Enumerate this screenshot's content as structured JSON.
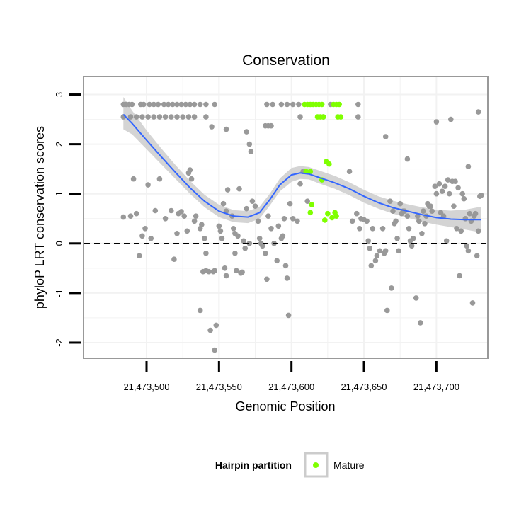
{
  "chart_data": {
    "type": "scatter",
    "title": "Conservation",
    "xlabel": "Genomic Position",
    "ylabel": "phyloP LRT conservation scores",
    "xlim": [
      21473457,
      21473735
    ],
    "ylim": [
      -2.3,
      3.35
    ],
    "x_ticks": [
      21473500,
      21473550,
      21473600,
      21473650,
      21473700
    ],
    "x_tick_labels": [
      "21,473,500",
      "21,473,550",
      "21,473,600",
      "21,473,650",
      "21,473,700"
    ],
    "y_ticks": [
      -2,
      -1,
      0,
      1,
      2,
      3
    ],
    "y_tick_labels": [
      "-2",
      "-1",
      "0",
      "1",
      "2",
      "3"
    ],
    "grid": true,
    "reference_line": {
      "y": 0,
      "style": "dashed"
    },
    "colors": {
      "background_points": "#999999",
      "mature": "#7FFF00",
      "smooth": "#3366FF",
      "ribbon": "#CCCCCC",
      "panel_border": "#999999",
      "grid": "#F2F2F2"
    },
    "legend": {
      "title": "Hairpin partition",
      "position": "bottom",
      "entries": [
        "Mature"
      ]
    },
    "series": [
      {
        "name": "",
        "color": "#999999",
        "points": [
          [
            21473484,
            2.8
          ],
          [
            21473486,
            2.8
          ],
          [
            21473488,
            2.8
          ],
          [
            21473490,
            2.8
          ],
          [
            21473484,
            2.55
          ],
          [
            21473489,
            2.55
          ],
          [
            21473493,
            2.55
          ],
          [
            21473497,
            2.55
          ],
          [
            21473501,
            2.55
          ],
          [
            21473505,
            2.55
          ],
          [
            21473509,
            2.55
          ],
          [
            21473513,
            2.55
          ],
          [
            21473517,
            2.55
          ],
          [
            21473521,
            2.55
          ],
          [
            21473525,
            2.55
          ],
          [
            21473529,
            2.55
          ],
          [
            21473533,
            2.55
          ],
          [
            21473541,
            2.55
          ],
          [
            21473496,
            2.8
          ],
          [
            21473498,
            2.8
          ],
          [
            21473502,
            2.8
          ],
          [
            21473505,
            2.8
          ],
          [
            21473508,
            2.8
          ],
          [
            21473512,
            2.8
          ],
          [
            21473515,
            2.8
          ],
          [
            21473518,
            2.8
          ],
          [
            21473521,
            2.8
          ],
          [
            21473524,
            2.8
          ],
          [
            21473527,
            2.8
          ],
          [
            21473530,
            2.8
          ],
          [
            21473533,
            2.8
          ],
          [
            21473537,
            2.8
          ],
          [
            21473541,
            2.8
          ],
          [
            21473547,
            2.8
          ],
          [
            21473583,
            2.8
          ],
          [
            21473587,
            2.8
          ],
          [
            21473593,
            2.8
          ],
          [
            21473597,
            2.8
          ],
          [
            21473601,
            2.8
          ],
          [
            21473605,
            2.8
          ],
          [
            21473627,
            2.8
          ],
          [
            21473646,
            2.8
          ],
          [
            21473622,
            2.55
          ],
          [
            21473646,
            2.55
          ],
          [
            21473606,
            2.55
          ],
          [
            21473545,
            2.35
          ],
          [
            21473555,
            2.3
          ],
          [
            21473569,
            2.25
          ],
          [
            21473571,
            2.0
          ],
          [
            21473572,
            1.85
          ],
          [
            21473582,
            2.37
          ],
          [
            21473584,
            2.37
          ],
          [
            21473586,
            2.37
          ],
          [
            21473665,
            2.15
          ],
          [
            21473680,
            1.7
          ],
          [
            21473700,
            2.45
          ],
          [
            21473710,
            2.5
          ],
          [
            21473729,
            2.65
          ],
          [
            21473722,
            1.55
          ],
          [
            21473484,
            0.53
          ],
          [
            21473489,
            0.55
          ],
          [
            21473491,
            1.3
          ],
          [
            21473493,
            0.6
          ],
          [
            21473495,
            -0.25
          ],
          [
            21473497,
            0.15
          ],
          [
            21473499,
            0.3
          ],
          [
            21473501,
            1.18
          ],
          [
            21473503,
            0.1
          ],
          [
            21473506,
            0.66
          ],
          [
            21473509,
            1.3
          ],
          [
            21473513,
            0.5
          ],
          [
            21473517,
            0.66
          ],
          [
            21473519,
            -0.32
          ],
          [
            21473521,
            0.2
          ],
          [
            21473522,
            0.6
          ],
          [
            21473524,
            0.64
          ],
          [
            21473526,
            0.55
          ],
          [
            21473528,
            0.25
          ],
          [
            21473529,
            1.42
          ],
          [
            21473530,
            1.48
          ],
          [
            21473531,
            1.3
          ],
          [
            21473533,
            0.45
          ],
          [
            21473534,
            0.55
          ],
          [
            21473537,
            0.3
          ],
          [
            21473537,
            -1.35
          ],
          [
            21473538,
            0.38
          ],
          [
            21473539,
            -0.57
          ],
          [
            21473540,
            0.1
          ],
          [
            21473541,
            -0.2
          ],
          [
            21473541,
            -0.55
          ],
          [
            21473543,
            -0.57
          ],
          [
            21473544,
            -1.75
          ],
          [
            21473546,
            -0.57
          ],
          [
            21473547,
            -0.55
          ],
          [
            21473548,
            -1.65
          ],
          [
            21473547,
            -2.15
          ],
          [
            21473550,
            0.35
          ],
          [
            21473551,
            0.25
          ],
          [
            21473552,
            0.1
          ],
          [
            21473553,
            0.8
          ],
          [
            21473554,
            -0.5
          ],
          [
            21473555,
            0.65
          ],
          [
            21473555,
            -0.65
          ],
          [
            21473556,
            1.08
          ],
          [
            21473559,
            0.55
          ],
          [
            21473560,
            0.3
          ],
          [
            21473561,
            0.2
          ],
          [
            21473561,
            -0.2
          ],
          [
            21473562,
            -0.55
          ],
          [
            21473563,
            0.15
          ],
          [
            21473564,
            1.1
          ],
          [
            21473565,
            -0.6
          ],
          [
            21473566,
            -0.58
          ],
          [
            21473567,
            0.05
          ],
          [
            21473568,
            -0.1
          ],
          [
            21473569,
            0.7
          ],
          [
            21473571,
            0.0
          ],
          [
            21473573,
            0.85
          ],
          [
            21473575,
            0.75
          ],
          [
            21473577,
            0.45
          ],
          [
            21473578,
            0.1
          ],
          [
            21473579,
            0.0
          ],
          [
            21473580,
            -0.05
          ],
          [
            21473582,
            -0.2
          ],
          [
            21473583,
            -0.72
          ],
          [
            21473584,
            0.55
          ],
          [
            21473586,
            0.3
          ],
          [
            21473588,
            0.0
          ],
          [
            21473590,
            -0.35
          ],
          [
            21473591,
            0.35
          ],
          [
            21473593,
            0.1
          ],
          [
            21473594,
            0.15
          ],
          [
            21473595,
            0.5
          ],
          [
            21473596,
            -0.45
          ],
          [
            21473597,
            -0.7
          ],
          [
            21473598,
            -1.45
          ],
          [
            21473599,
            0.8
          ],
          [
            21473601,
            0.5
          ],
          [
            21473604,
            0.45
          ],
          [
            21473606,
            1.2
          ],
          [
            21473608,
            1.45
          ],
          [
            21473611,
            0.85
          ],
          [
            21473640,
            1.45
          ],
          [
            21473642,
            0.45
          ],
          [
            21473645,
            0.6
          ],
          [
            21473647,
            0.3
          ],
          [
            21473648,
            0.5
          ],
          [
            21473650,
            0.48
          ],
          [
            21473652,
            0.45
          ],
          [
            21473653,
            0.05
          ],
          [
            21473654,
            -0.1
          ],
          [
            21473655,
            -0.45
          ],
          [
            21473656,
            0.3
          ],
          [
            21473658,
            -0.35
          ],
          [
            21473659,
            -0.25
          ],
          [
            21473661,
            -0.15
          ],
          [
            21473663,
            0.3
          ],
          [
            21473664,
            -0.2
          ],
          [
            21473665,
            -0.15
          ],
          [
            21473666,
            -1.35
          ],
          [
            21473668,
            0.85
          ],
          [
            21473669,
            -0.9
          ],
          [
            21473670,
            0.65
          ],
          [
            21473671,
            0.4
          ],
          [
            21473672,
            0.45
          ],
          [
            21473673,
            0.1
          ],
          [
            21473674,
            -0.15
          ],
          [
            21473675,
            0.8
          ],
          [
            21473676,
            0.6
          ],
          [
            21473677,
            0.65
          ],
          [
            21473678,
            0.65
          ],
          [
            21473680,
            0.55
          ],
          [
            21473681,
            0.3
          ],
          [
            21473682,
            0.05
          ],
          [
            21473683,
            -0.05
          ],
          [
            21473684,
            0.1
          ],
          [
            21473686,
            -1.1
          ],
          [
            21473687,
            0.55
          ],
          [
            21473688,
            0.45
          ],
          [
            21473689,
            -1.6
          ],
          [
            21473690,
            0.2
          ],
          [
            21473691,
            0.65
          ],
          [
            21473692,
            0.4
          ],
          [
            21473693,
            0.55
          ],
          [
            21473694,
            0.8
          ],
          [
            21473695,
            0.75
          ],
          [
            21473696,
            0.75
          ],
          [
            21473697,
            0.65
          ],
          [
            21473699,
            1.15
          ],
          [
            21473700,
            1.0
          ],
          [
            21473702,
            1.2
          ],
          [
            21473703,
            0.62
          ],
          [
            21473704,
            1.05
          ],
          [
            21473705,
            0.55
          ],
          [
            21473706,
            1.15
          ],
          [
            21473707,
            0.05
          ],
          [
            21473708,
            1.28
          ],
          [
            21473709,
            1.0
          ],
          [
            21473711,
            1.25
          ],
          [
            21473712,
            0.75
          ],
          [
            21473713,
            1.25
          ],
          [
            21473714,
            0.3
          ],
          [
            21473715,
            1.12
          ],
          [
            21473716,
            -0.65
          ],
          [
            21473717,
            0.25
          ],
          [
            21473718,
            1.0
          ],
          [
            21473719,
            0.9
          ],
          [
            21473720,
            0.5
          ],
          [
            21473721,
            -0.05
          ],
          [
            21473722,
            -0.15
          ],
          [
            21473723,
            0.6
          ],
          [
            21473724,
            0.45
          ],
          [
            21473725,
            -1.2
          ],
          [
            21473726,
            0.55
          ],
          [
            21473727,
            0.6
          ],
          [
            21473728,
            -0.25
          ],
          [
            21473729,
            0.25
          ],
          [
            21473730,
            0.95
          ],
          [
            21473731,
            0.97
          ]
        ]
      },
      {
        "name": "Mature",
        "color": "#7FFF00",
        "points": [
          [
            21473609,
            2.8
          ],
          [
            21473611,
            2.8
          ],
          [
            21473613,
            2.8
          ],
          [
            21473615,
            2.8
          ],
          [
            21473617,
            2.8
          ],
          [
            21473619,
            2.8
          ],
          [
            21473621,
            2.8
          ],
          [
            21473629,
            2.8
          ],
          [
            21473631,
            2.8
          ],
          [
            21473633,
            2.8
          ],
          [
            21473618,
            2.55
          ],
          [
            21473620,
            2.55
          ],
          [
            21473622,
            2.55
          ],
          [
            21473632,
            2.55
          ],
          [
            21473634,
            2.55
          ],
          [
            21473610,
            1.45
          ],
          [
            21473613,
            1.45
          ],
          [
            21473621,
            1.28
          ],
          [
            21473624,
            1.65
          ],
          [
            21473626,
            1.6
          ],
          [
            21473613,
            0.62
          ],
          [
            21473614,
            0.78
          ],
          [
            21473623,
            0.47
          ],
          [
            21473625,
            0.6
          ],
          [
            21473628,
            0.52
          ],
          [
            21473630,
            0.62
          ],
          [
            21473631,
            0.55
          ]
        ]
      }
    ],
    "smooth": {
      "x": [
        21473484,
        21473490,
        21473500,
        21473510,
        21473520,
        21473530,
        21473540,
        21473550,
        21473560,
        21473570,
        21473578,
        21473585,
        21473592,
        21473600,
        21473606,
        21473612,
        21473620,
        21473630,
        21473640,
        21473650,
        21473660,
        21473670,
        21473680,
        21473690,
        21473700,
        21473710,
        21473720,
        21473731
      ],
      "y": [
        2.6,
        2.42,
        2.08,
        1.75,
        1.43,
        1.12,
        0.85,
        0.65,
        0.55,
        0.53,
        0.62,
        0.88,
        1.18,
        1.38,
        1.42,
        1.4,
        1.32,
        1.22,
        1.1,
        0.95,
        0.82,
        0.72,
        0.65,
        0.58,
        0.52,
        0.49,
        0.48,
        0.48
      ],
      "lower": [
        2.3,
        2.2,
        1.9,
        1.6,
        1.3,
        1.0,
        0.73,
        0.53,
        0.43,
        0.41,
        0.5,
        0.76,
        1.05,
        1.24,
        1.3,
        1.29,
        1.2,
        1.1,
        0.97,
        0.82,
        0.7,
        0.6,
        0.52,
        0.44,
        0.38,
        0.33,
        0.28,
        0.22
      ],
      "upper": [
        2.95,
        2.68,
        2.28,
        1.92,
        1.58,
        1.26,
        0.98,
        0.78,
        0.67,
        0.65,
        0.74,
        1.0,
        1.31,
        1.52,
        1.56,
        1.54,
        1.46,
        1.36,
        1.23,
        1.08,
        0.95,
        0.86,
        0.79,
        0.73,
        0.68,
        0.66,
        0.68,
        0.74
      ]
    }
  }
}
